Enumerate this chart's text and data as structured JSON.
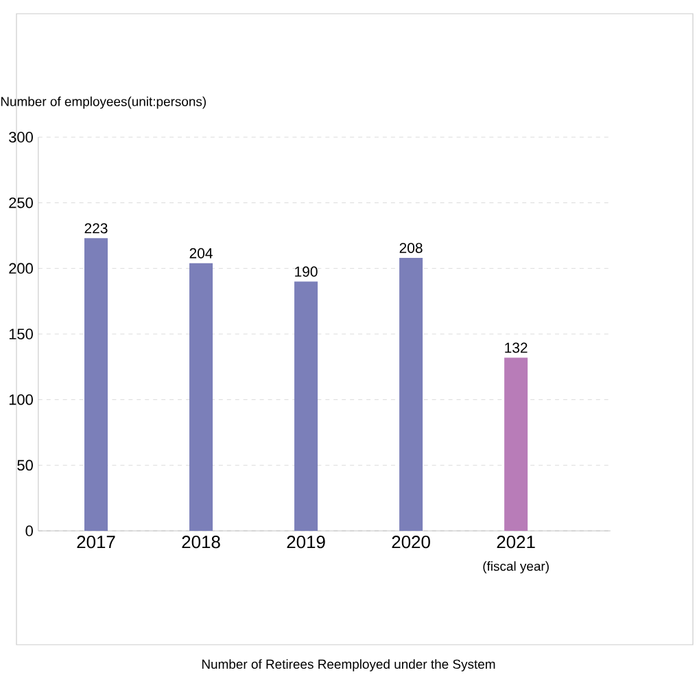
{
  "chart_data": {
    "type": "bar",
    "title": "Number of Retirees Reemployed under the System",
    "ylabel": "Number of employees(unit:persons)",
    "xlabel": "(fiscal year)",
    "categories": [
      "2017",
      "2018",
      "2019",
      "2020",
      "2021"
    ],
    "values": [
      223,
      204,
      190,
      208,
      132
    ],
    "colors": [
      "#7b7fb9",
      "#7b7fb9",
      "#7b7fb9",
      "#7b7fb9",
      "#b87cb8"
    ],
    "data_labels": true,
    "ylim": [
      0,
      300
    ],
    "yticks": [
      0,
      50,
      100,
      150,
      200,
      250,
      300
    ],
    "grid": "y"
  }
}
